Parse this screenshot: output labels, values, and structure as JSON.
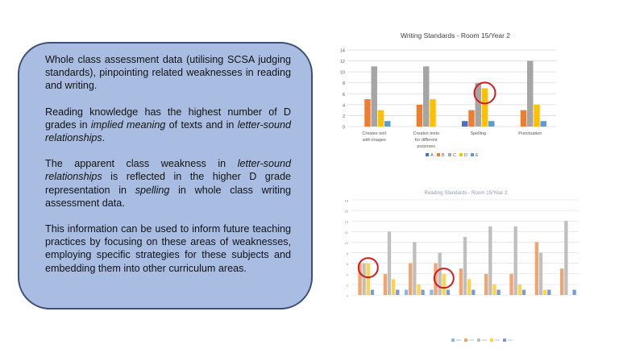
{
  "slide": {
    "paragraphs": [
      [
        {
          "t": "Whole class assessment data (utilising SCSA judging standards), pinpointing related weaknesses in reading and writing."
        }
      ],
      [
        {
          "t": "Reading knowledge has the highest number of D grades in "
        },
        {
          "t": "implied meaning",
          "i": true
        },
        {
          "t": " of texts and in "
        },
        {
          "t": "letter-sound relationships",
          "i": true
        },
        {
          "t": "."
        }
      ],
      [
        {
          "t": "The apparent class weakness in "
        },
        {
          "t": "letter-sound relationships",
          "i": true
        },
        {
          "t": " is reflected in the higher D grade representation in "
        },
        {
          "t": "spelling",
          "i": true
        },
        {
          "t": " in whole class writing assessment data."
        }
      ],
      [
        {
          "t": "This information can be used to inform future teaching practices by focusing on these areas of weaknesses, employing specific strategies for these subjects and embedding them into other curriculum areas."
        }
      ]
    ]
  },
  "chart_data": [
    {
      "type": "bar",
      "title": "Writing Standards - Room 15/Year 2",
      "categories": [
        "Creates text with images",
        "Creates texts for different purposes",
        "Spelling",
        "Punctuation"
      ],
      "series": [
        {
          "name": "A",
          "color": "#4472c4",
          "values": [
            0,
            0,
            1,
            0
          ]
        },
        {
          "name": "B",
          "color": "#ed7d31",
          "values": [
            5,
            4,
            3,
            3
          ]
        },
        {
          "name": "C",
          "color": "#a5a5a5",
          "values": [
            11,
            11,
            8,
            12
          ]
        },
        {
          "name": "D",
          "color": "#ffc000",
          "values": [
            3,
            5,
            7,
            4
          ]
        },
        {
          "name": "E",
          "color": "#5b9bd5",
          "values": [
            1,
            0,
            1,
            1
          ]
        }
      ],
      "ylim": [
        0,
        14
      ],
      "yticks": [
        0,
        2,
        4,
        6,
        8,
        10,
        12,
        14
      ],
      "grid": true,
      "legend": "bottom",
      "highlight": {
        "category": 2,
        "series": 3
      }
    },
    {
      "type": "bar",
      "title": "Reading Standards - Room 15/Year 2",
      "categories": [
        "",
        "",
        "",
        "",
        "",
        "",
        "",
        "",
        ""
      ],
      "series": [
        {
          "name": "",
          "color": "#5b9bd5",
          "values": [
            0,
            0,
            1,
            1,
            0,
            0,
            0,
            0,
            0
          ]
        },
        {
          "name": "",
          "color": "#ed7d31",
          "values": [
            6,
            4,
            6,
            6,
            5,
            4,
            4,
            10,
            5
          ]
        },
        {
          "name": "",
          "color": "#a5a5a5",
          "values": [
            6,
            12,
            10,
            8,
            11,
            13,
            13,
            8,
            14
          ]
        },
        {
          "name": "",
          "color": "#ffc000",
          "values": [
            6,
            3,
            2,
            4,
            3,
            2,
            2,
            1,
            0
          ]
        },
        {
          "name": "",
          "color": "#4472c4",
          "values": [
            1,
            1,
            1,
            1,
            1,
            1,
            1,
            1,
            1
          ]
        }
      ],
      "ylim": [
        0,
        18
      ],
      "yticks": [
        0,
        2,
        4,
        6,
        8,
        10,
        12,
        14,
        16,
        18
      ],
      "grid": true,
      "legend": "bottom",
      "faded": true,
      "highlights": [
        {
          "category": 0,
          "series": 3
        },
        {
          "category": 3,
          "series": 3
        }
      ]
    }
  ]
}
